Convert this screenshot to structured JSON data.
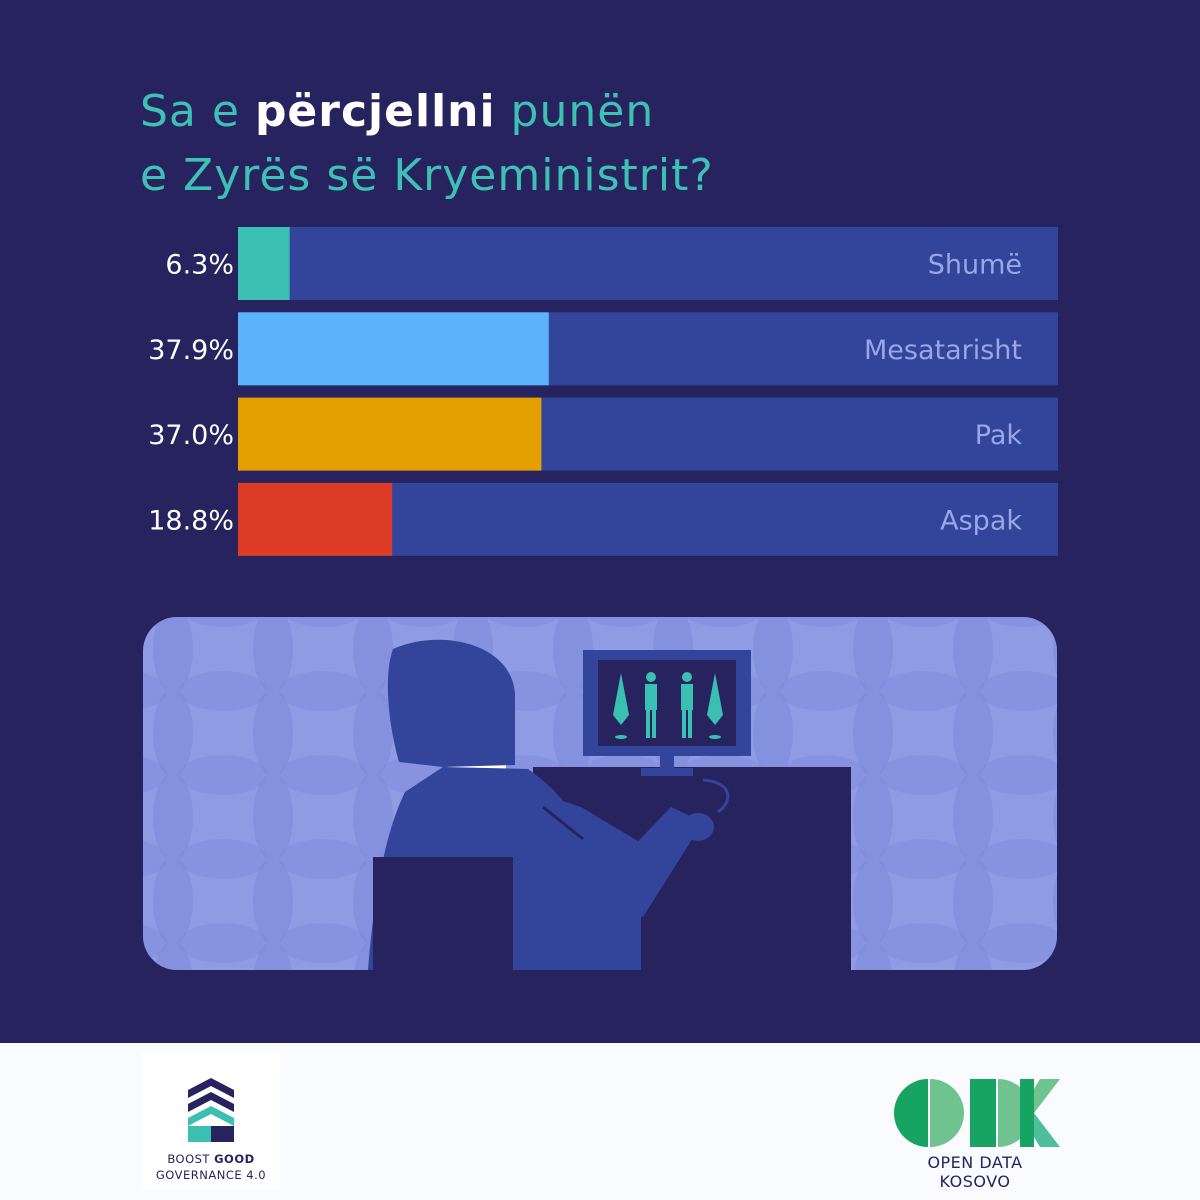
{
  "title": {
    "part1": "Sa e ",
    "part2": "përcjellni",
    "part3": " punën",
    "line2": "e Zyrës së Kryeministrit?"
  },
  "chart_data": {
    "type": "bar",
    "orientation": "horizontal",
    "categories": [
      "Shumë",
      "Mesatarisht",
      "Pak",
      "Aspak"
    ],
    "values": [
      6.3,
      37.9,
      37.0,
      18.8
    ],
    "value_labels": [
      "6.3%",
      "37.9%",
      "37.0%",
      "18.8%"
    ],
    "xlim": [
      0,
      100
    ],
    "colors": [
      "#3bbfb2",
      "#5cb3fc",
      "#e69f00",
      "#dc3b26"
    ],
    "track_color": "#33449b",
    "grid": false
  },
  "footer": {
    "left_logo": {
      "line1_a": "BOOST ",
      "line1_b": "GOOD",
      "line2": "GOVERNANCE 4.0"
    },
    "right_logo": {
      "letters": "ODK",
      "name": "OPEN DATA KOSOVO"
    }
  },
  "colors": {
    "background": "#26235e",
    "accent": "#3ec0b4",
    "footer_bg": "#f9fbfe"
  }
}
